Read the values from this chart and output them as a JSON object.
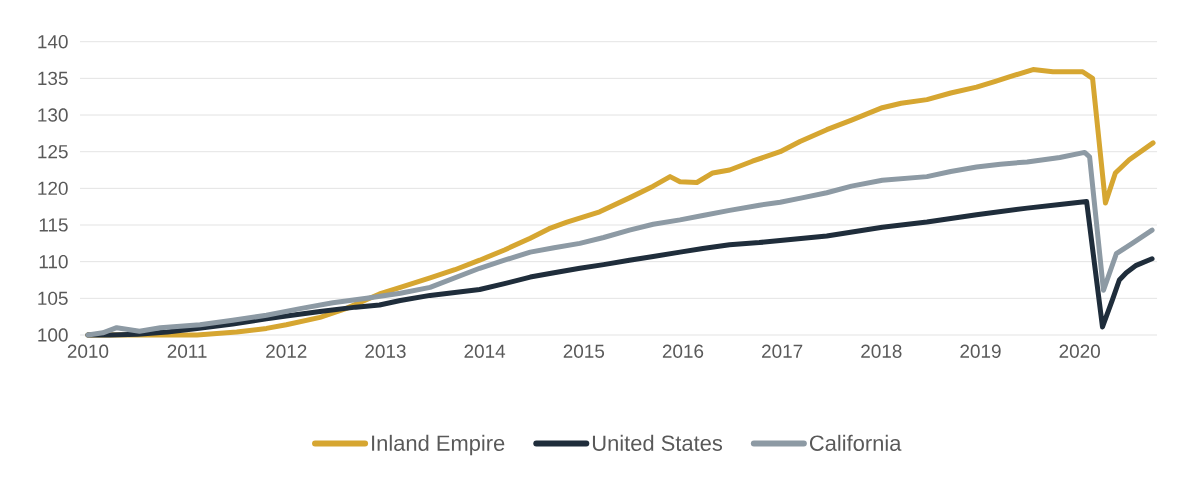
{
  "chart_data": {
    "type": "line",
    "xlim": [
      2009.92,
      2020.78
    ],
    "xticks": [
      2010,
      2011,
      2012,
      2013,
      2014,
      2015,
      2016,
      2017,
      2018,
      2019,
      2020
    ],
    "ylim": [
      100,
      140
    ],
    "yticks": [
      100,
      105,
      110,
      115,
      120,
      125,
      130,
      135,
      140
    ],
    "grid": "y",
    "legend": "bottom",
    "series": [
      {
        "name": "Inland Empire",
        "color": "#d6a631",
        "x": [
          2010.0,
          2010.2,
          2010.4,
          2010.8,
          2011.1,
          2011.5,
          2011.8,
          2012.0,
          2012.34,
          2012.6,
          2012.94,
          2013.15,
          2013.45,
          2013.7,
          2013.95,
          2014.2,
          2014.46,
          2014.65,
          2014.83,
          2015.16,
          2015.46,
          2015.7,
          2015.87,
          2015.97,
          2016.14,
          2016.3,
          2016.47,
          2016.7,
          2016.98,
          2017.18,
          2017.45,
          2017.7,
          2018.01,
          2018.2,
          2018.46,
          2018.7,
          2018.96,
          2019.15,
          2019.29,
          2019.53,
          2019.73,
          2019.9,
          2020.03,
          2020.13,
          2020.26,
          2020.36,
          2020.5,
          2020.74
        ],
        "values": [
          100.0,
          100.0,
          100.0,
          100.0,
          100.0,
          100.4,
          100.9,
          101.4,
          102.4,
          103.6,
          105.6,
          106.5,
          107.8,
          108.9,
          110.2,
          111.6,
          113.2,
          114.5,
          115.4,
          116.8,
          118.7,
          120.3,
          121.6,
          120.9,
          120.8,
          122.1,
          122.5,
          123.7,
          125.0,
          126.4,
          128.0,
          129.3,
          131.0,
          131.6,
          132.1,
          133.0,
          133.8,
          134.6,
          135.2,
          136.2,
          135.9,
          135.9,
          135.9,
          135.0,
          118.0,
          122.1,
          123.9,
          126.2
        ]
      },
      {
        "name": "United States",
        "color": "#1f2d3b",
        "x": [
          2010.0,
          2010.22,
          2010.5,
          2010.8,
          2011.1,
          2011.46,
          2011.8,
          2012.0,
          2012.34,
          2012.7,
          2012.94,
          2013.15,
          2013.45,
          2013.7,
          2013.95,
          2014.2,
          2014.46,
          2014.7,
          2014.96,
          2015.2,
          2015.46,
          2015.7,
          2015.97,
          2016.2,
          2016.47,
          2016.77,
          2016.98,
          2017.45,
          2018.01,
          2018.46,
          2018.96,
          2019.47,
          2019.8,
          2020.07,
          2020.23,
          2020.33,
          2020.4,
          2020.47,
          2020.57,
          2020.73
        ],
        "values": [
          100.0,
          100.0,
          100.1,
          100.4,
          100.9,
          101.5,
          102.2,
          102.6,
          103.2,
          103.8,
          104.1,
          104.7,
          105.4,
          105.8,
          106.2,
          107.0,
          107.9,
          108.5,
          109.1,
          109.6,
          110.2,
          110.7,
          111.3,
          111.8,
          112.3,
          112.6,
          112.9,
          113.5,
          114.7,
          115.4,
          116.4,
          117.3,
          117.8,
          118.2,
          101.1,
          104.8,
          107.5,
          108.5,
          109.5,
          110.4
        ]
      },
      {
        "name": "California",
        "color": "#8d9aa4",
        "x": [
          2010.0,
          2010.15,
          2010.29,
          2010.52,
          2010.73,
          2011.13,
          2011.46,
          2011.8,
          2012.14,
          2012.47,
          2012.81,
          2013.15,
          2013.45,
          2013.7,
          2013.95,
          2014.2,
          2014.46,
          2014.7,
          2014.96,
          2015.2,
          2015.46,
          2015.7,
          2015.97,
          2016.2,
          2016.47,
          2016.77,
          2016.98,
          2017.2,
          2017.45,
          2017.7,
          2018.01,
          2018.46,
          2018.7,
          2018.96,
          2019.2,
          2019.47,
          2019.8,
          2020.05,
          2020.1,
          2020.24,
          2020.37,
          2020.53,
          2020.73
        ],
        "values": [
          100.0,
          100.3,
          101.0,
          100.5,
          101.0,
          101.4,
          102.0,
          102.7,
          103.6,
          104.4,
          105.0,
          105.7,
          106.5,
          107.8,
          109.1,
          110.2,
          111.3,
          111.9,
          112.5,
          113.3,
          114.3,
          115.1,
          115.7,
          116.3,
          117.0,
          117.7,
          118.1,
          118.7,
          119.4,
          120.3,
          121.1,
          121.6,
          122.3,
          122.9,
          123.3,
          123.6,
          124.2,
          124.9,
          124.3,
          106.1,
          111.1,
          112.5,
          114.3
        ]
      }
    ]
  }
}
